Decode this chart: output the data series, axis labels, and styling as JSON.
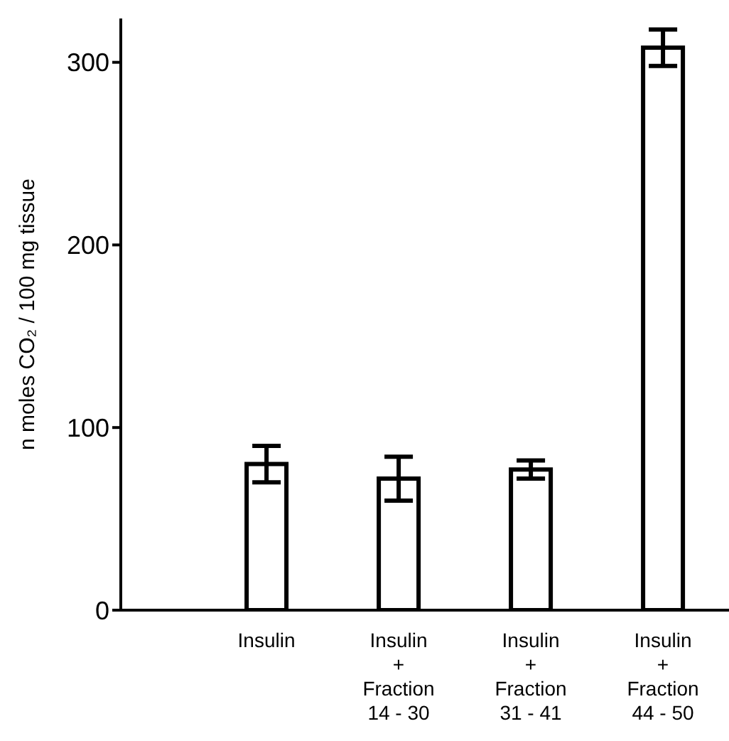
{
  "chart_data": {
    "type": "bar",
    "ylabel": "n moles CO₂ / 100 mg tissue",
    "categories": [
      "Insulin",
      "Insulin\n+\nFraction\n14 - 30",
      "Insulin\n+\nFraction\n31 - 41",
      "Insulin\n+\nFraction\n44 - 50"
    ],
    "values": [
      80,
      72,
      77,
      308
    ],
    "errors": [
      10,
      12,
      5,
      10
    ],
    "color": "#ffffff",
    "ylim": [
      0,
      324
    ],
    "yticks": [
      0,
      100,
      200,
      300
    ],
    "grid": false,
    "legend": false
  }
}
